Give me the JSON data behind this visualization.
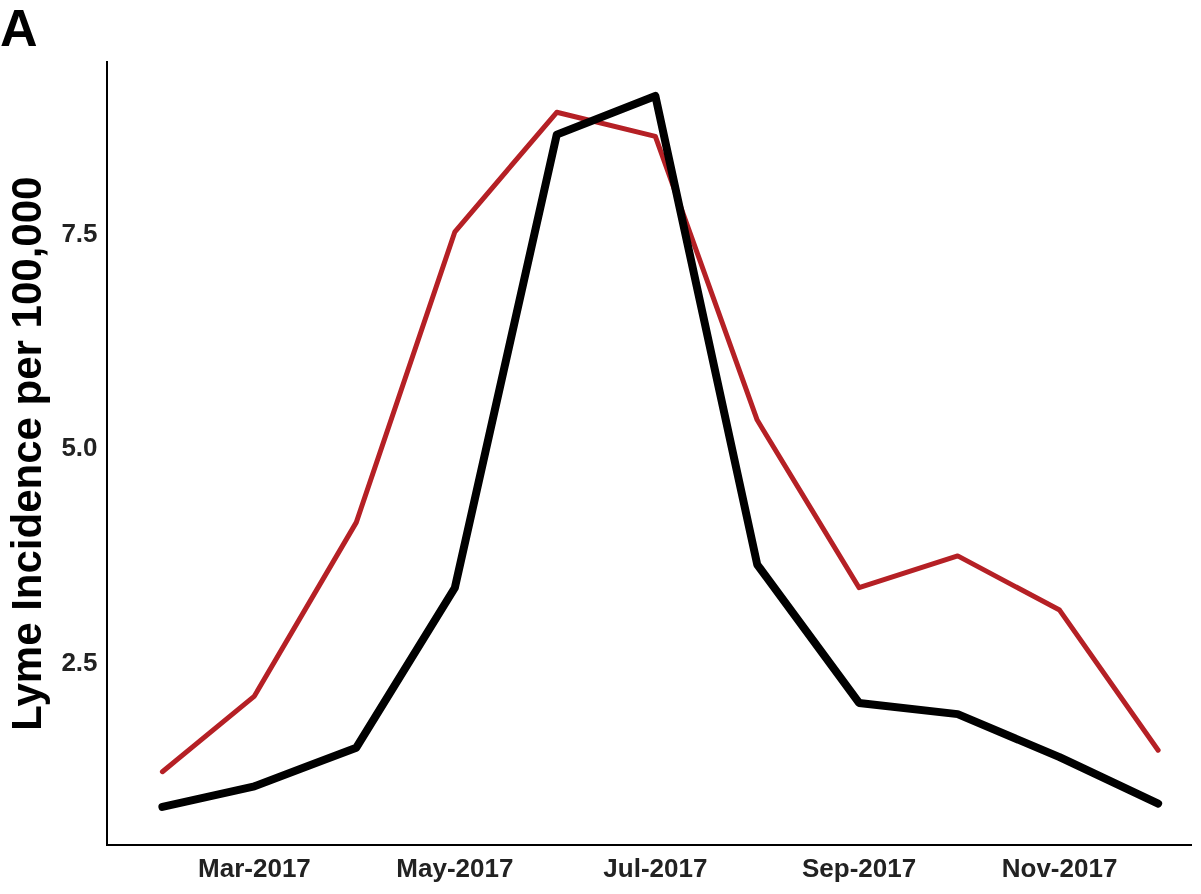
{
  "chart_data": {
    "type": "line",
    "title": "A",
    "ylabel": "Lyme Incidence per 100,000",
    "x": [
      "2017-02-01",
      "2017-03-01",
      "2017-04-01",
      "2017-05-01",
      "2017-06-01",
      "2017-07-01",
      "2017-08-01",
      "2017-09-01",
      "2017-10-01",
      "2017-11-01",
      "2017-12-01"
    ],
    "series": [
      {
        "color": "#000000",
        "values": [
          0.84,
          1.08,
          1.53,
          3.39,
          8.66,
          9.11,
          3.66,
          2.05,
          1.92,
          1.42,
          0.88
        ]
      },
      {
        "color": "#b52025",
        "values": [
          1.25,
          2.13,
          4.15,
          7.53,
          8.92,
          8.64,
          5.34,
          3.39,
          3.76,
          3.13,
          1.5
        ]
      }
    ],
    "xlim": [
      "2017-01-15",
      "2017-12-11"
    ],
    "xticks": [
      {
        "value": "2017-03-01",
        "label": "Mar-2017"
      },
      {
        "value": "2017-05-01",
        "label": "May-2017"
      },
      {
        "value": "2017-07-01",
        "label": "Jul-2017"
      },
      {
        "value": "2017-09-01",
        "label": "Sep-2017"
      },
      {
        "value": "2017-11-01",
        "label": "Nov-2017"
      }
    ],
    "ylim": [
      0.4,
      9.5
    ],
    "yticks": [
      {
        "value": 2.5,
        "label": "2.5"
      },
      {
        "value": 5,
        "label": "5.0"
      },
      {
        "value": 7.5,
        "label": "7.5"
      }
    ],
    "grid": false,
    "legend": false,
    "marker": "none",
    "line_style": "solid"
  }
}
